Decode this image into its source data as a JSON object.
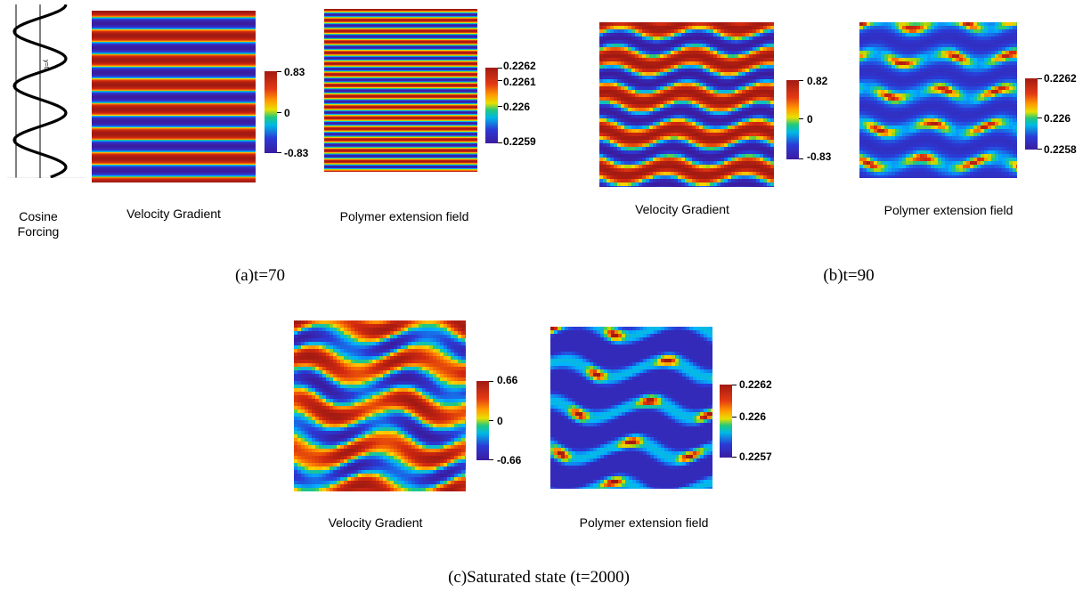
{
  "colormap": [
    "#3b1c9f",
    "#2b3ad6",
    "#00b4ff",
    "#22c97a",
    "#b7d800",
    "#ffd200",
    "#ff7d00",
    "#d42a10",
    "#a11a12"
  ],
  "panels": {
    "a": {
      "caption": "(a)t=70",
      "forcing": {
        "label_line1": "Cosine",
        "label_line2": "Forcing",
        "axis_label": "y=0"
      },
      "velocity": {
        "label": "Velocity Gradient",
        "ticks": [
          "0.83",
          "0",
          "-0.83"
        ]
      },
      "polymer": {
        "label": "Polymer extension field",
        "ticks": [
          "0.2262",
          "0.2261",
          "0.226",
          "0.2259"
        ]
      }
    },
    "b": {
      "caption": "(b)t=90",
      "velocity": {
        "label": "Velocity Gradient",
        "ticks": [
          "0.82",
          "0",
          "-0.83"
        ]
      },
      "polymer": {
        "label": "Polymer extension field",
        "ticks": [
          "0.2262",
          "0.226",
          "0.2258"
        ]
      }
    },
    "c": {
      "caption": "(c)Saturated state (t=2000)",
      "velocity": {
        "label": "Velocity Gradient",
        "ticks": [
          "0.66",
          "0",
          "-0.66"
        ]
      },
      "polymer": {
        "label": "Polymer extension field",
        "ticks": [
          "0.2262",
          "0.226",
          "0.2257"
        ]
      }
    }
  }
}
